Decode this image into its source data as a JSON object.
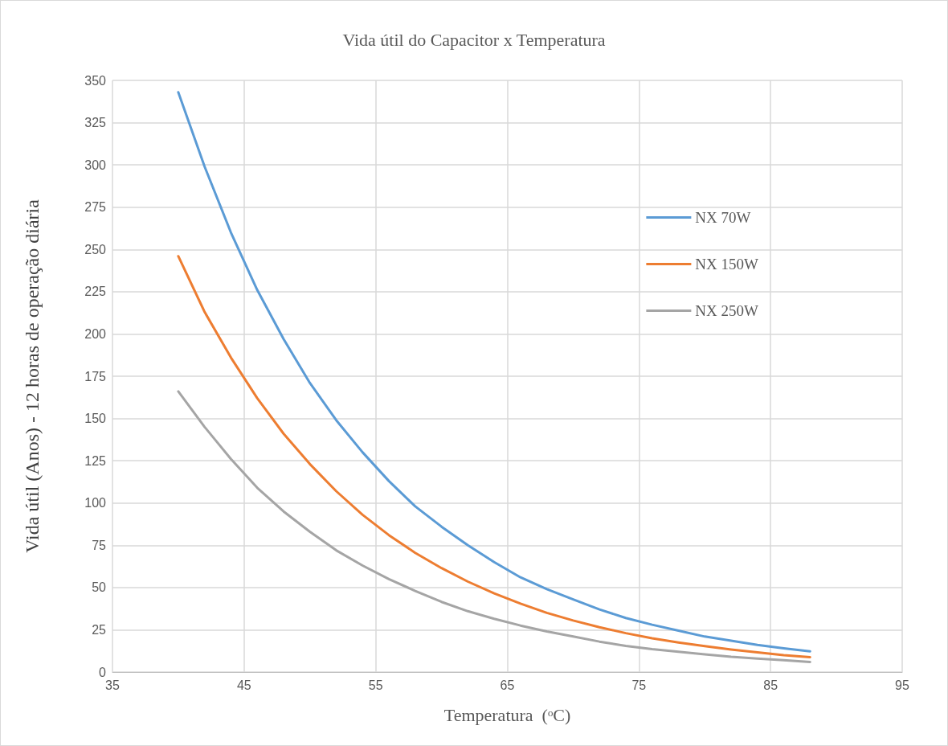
{
  "chart_data": {
    "type": "line",
    "title": "Vida útil do Capacitor x Temperatura",
    "xlabel": "Temperatura  (ᵒC)",
    "ylabel": "Vida útil (Anos) - 12 horas de operação diária",
    "x": [
      40,
      42,
      44,
      46,
      48,
      50,
      52,
      54,
      56,
      58,
      60,
      62,
      64,
      66,
      68,
      70,
      72,
      74,
      76,
      78,
      80,
      82,
      84,
      86,
      88
    ],
    "series": [
      {
        "name": "NX 70W",
        "color": "#5b9bd5",
        "values": [
          343,
          299,
          260,
          226,
          197,
          171,
          149,
          130,
          113,
          98,
          86,
          75,
          65,
          56,
          49,
          43,
          37,
          32,
          28,
          24.5,
          21,
          18.5,
          16,
          14,
          12.3
        ]
      },
      {
        "name": "NX 150W",
        "color": "#ed7d31",
        "values": [
          246,
          213,
          186,
          162,
          141,
          123,
          107,
          93,
          81,
          70.5,
          61.5,
          53.5,
          46.5,
          40.5,
          35,
          30.5,
          26.5,
          23,
          20,
          17.5,
          15.3,
          13.3,
          11.6,
          10,
          8.8
        ]
      },
      {
        "name": "NX 250W",
        "color": "#a5a5a5",
        "values": [
          166,
          145,
          126,
          109,
          95,
          83,
          72,
          63,
          55,
          48,
          41.5,
          36,
          31.5,
          27.5,
          24,
          21,
          18,
          15.5,
          13.5,
          12,
          10.5,
          9,
          8,
          7,
          6
        ]
      }
    ],
    "xlim": [
      35,
      95
    ],
    "xticks": [
      35,
      45,
      55,
      65,
      75,
      85,
      95
    ],
    "ylim": [
      0,
      350
    ],
    "yticks": [
      0,
      25,
      50,
      75,
      100,
      125,
      150,
      175,
      200,
      225,
      250,
      275,
      300,
      325,
      350
    ],
    "grid": true,
    "legend": "top right",
    "marker": "none",
    "line_style": "solid"
  }
}
